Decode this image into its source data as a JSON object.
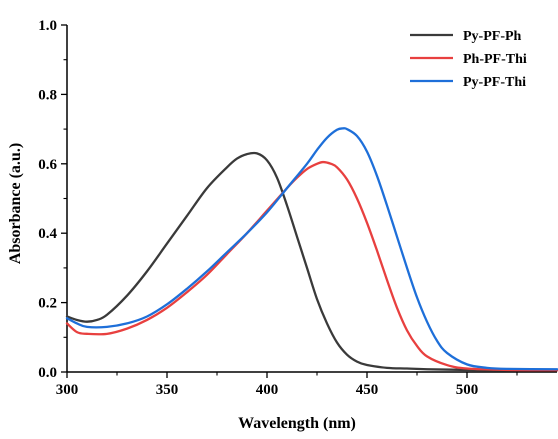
{
  "chart_data": {
    "type": "line",
    "xlabel": "Wavelength (nm)",
    "ylabel": "Absorbance (a.u.)",
    "xlim": [
      300,
      545
    ],
    "ylim": [
      0.0,
      1.0
    ],
    "x_ticks": [
      300,
      350,
      400,
      450,
      500
    ],
    "x_tick_labels": [
      "300",
      "350",
      "400",
      "450",
      "500"
    ],
    "y_ticks": [
      0.0,
      0.2,
      0.4,
      0.6,
      0.8,
      1.0
    ],
    "y_tick_labels": [
      "0.0",
      "0.2",
      "0.4",
      "0.6",
      "0.8",
      "1.0"
    ],
    "grid": false,
    "legend_position": "top-right",
    "series": [
      {
        "name": "Py-PF-Ph",
        "color": "#3a3a3a",
        "x": [
          300,
          305,
          310,
          315,
          320,
          330,
          340,
          350,
          360,
          370,
          380,
          385,
          390,
          395,
          400,
          405,
          410,
          415,
          420,
          425,
          430,
          435,
          440,
          445,
          450,
          460,
          470,
          480,
          500,
          520,
          545
        ],
        "y": [
          0.16,
          0.15,
          0.145,
          0.15,
          0.165,
          0.22,
          0.29,
          0.37,
          0.45,
          0.53,
          0.59,
          0.615,
          0.628,
          0.63,
          0.61,
          0.56,
          0.48,
          0.39,
          0.3,
          0.21,
          0.14,
          0.085,
          0.05,
          0.03,
          0.02,
          0.012,
          0.01,
          0.008,
          0.006,
          0.005,
          0.005
        ]
      },
      {
        "name": "Ph-PF-Thi",
        "color": "#e8403f",
        "x": [
          300,
          305,
          310,
          320,
          330,
          340,
          350,
          360,
          370,
          380,
          390,
          400,
          410,
          415,
          420,
          425,
          428,
          432,
          435,
          440,
          445,
          450,
          455,
          460,
          465,
          470,
          475,
          480,
          490,
          500,
          520,
          545
        ],
        "y": [
          0.14,
          0.115,
          0.11,
          0.11,
          0.125,
          0.15,
          0.185,
          0.23,
          0.28,
          0.34,
          0.4,
          0.465,
          0.53,
          0.56,
          0.585,
          0.6,
          0.605,
          0.6,
          0.59,
          0.555,
          0.5,
          0.43,
          0.35,
          0.265,
          0.185,
          0.12,
          0.075,
          0.045,
          0.02,
          0.01,
          0.006,
          0.005
        ]
      },
      {
        "name": "Py-PF-Thi",
        "color": "#1e6fd9",
        "x": [
          300,
          305,
          310,
          320,
          330,
          340,
          350,
          360,
          370,
          380,
          390,
          400,
          410,
          420,
          425,
          430,
          435,
          438,
          440,
          445,
          450,
          455,
          460,
          465,
          470,
          475,
          480,
          485,
          490,
          500,
          510,
          520,
          545
        ],
        "y": [
          0.155,
          0.14,
          0.13,
          0.13,
          0.14,
          0.16,
          0.195,
          0.24,
          0.29,
          0.345,
          0.4,
          0.46,
          0.53,
          0.6,
          0.64,
          0.675,
          0.698,
          0.702,
          0.7,
          0.68,
          0.635,
          0.565,
          0.48,
          0.39,
          0.3,
          0.215,
          0.145,
          0.09,
          0.055,
          0.022,
          0.012,
          0.009,
          0.008
        ]
      }
    ]
  }
}
